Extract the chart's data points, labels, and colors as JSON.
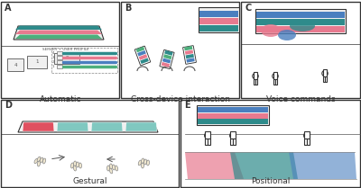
{
  "title": "",
  "background": "#ffffff",
  "panel_border_color": "#000000",
  "colors": {
    "green": "#4daf7c",
    "teal": "#2e8b8b",
    "pink": "#e87a8f",
    "blue": "#4a7fbf",
    "red": "#e05060",
    "light_blue": "#7fbfcf",
    "dark_blue": "#2060a0",
    "light_teal": "#80c8c0",
    "person": "#ffffff",
    "outline": "#333333"
  },
  "labels": {
    "A": "Automatic",
    "B": "Cross-device interaction",
    "C": "Voice commands",
    "D": "Gestural",
    "E": "Positional"
  }
}
